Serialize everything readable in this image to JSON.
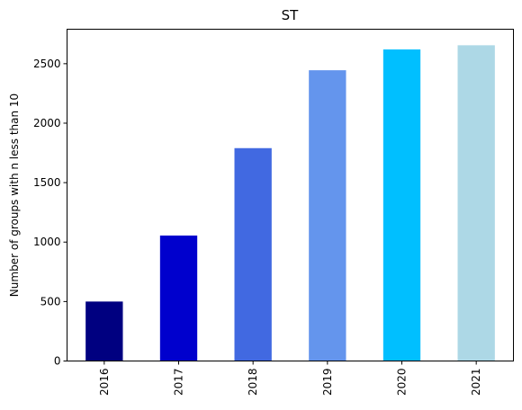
{
  "chart_data": {
    "type": "bar",
    "title": "ST",
    "xlabel": "",
    "ylabel": "Number of groups with n less than 10",
    "categories": [
      "2016",
      "2017",
      "2018",
      "2019",
      "2020",
      "2021"
    ],
    "values": [
      500,
      1055,
      1790,
      2445,
      2620,
      2655
    ],
    "colors": [
      "#000080",
      "#0000cd",
      "#4169e1",
      "#6495ed",
      "#00bfff",
      "#add8e6"
    ],
    "ylim": [
      0,
      2790
    ],
    "yticks": [
      0,
      500,
      1000,
      1500,
      2000,
      2500
    ],
    "grid": false,
    "legend": "none"
  }
}
